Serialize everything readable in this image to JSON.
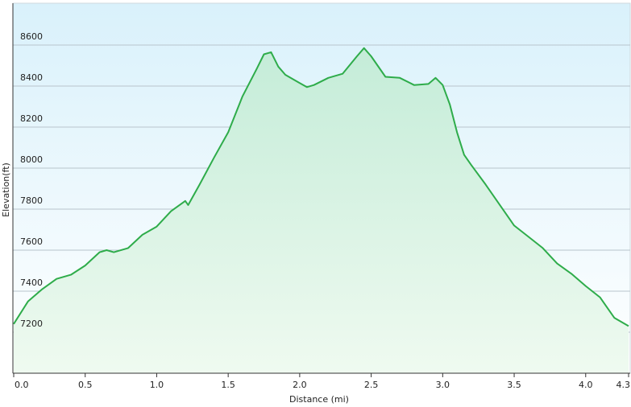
{
  "chart_data": {
    "type": "line",
    "x_label": "Distance  (mi)",
    "y_label": "Elevation(ft)",
    "x": [
      0,
      0.1,
      0.2,
      0.3,
      0.4,
      0.5,
      0.6,
      0.65,
      0.7,
      0.8,
      0.9,
      1.0,
      1.1,
      1.2,
      1.22,
      1.3,
      1.4,
      1.5,
      1.6,
      1.7,
      1.75,
      1.8,
      1.85,
      1.9,
      2.0,
      2.05,
      2.1,
      2.2,
      2.3,
      2.4,
      2.45,
      2.5,
      2.6,
      2.7,
      2.8,
      2.9,
      2.95,
      3.0,
      3.05,
      3.1,
      3.15,
      3.2,
      3.3,
      3.4,
      3.5,
      3.6,
      3.7,
      3.8,
      3.9,
      4.0,
      4.1,
      4.2,
      4.3
    ],
    "series": [
      {
        "color": "#2eac4a",
        "values": [
          7240,
          7350,
          7410,
          7460,
          7480,
          7525,
          7590,
          7600,
          7590,
          7610,
          7675,
          7715,
          7790,
          7840,
          7820,
          7920,
          8050,
          8175,
          8350,
          8485,
          8555,
          8565,
          8495,
          8455,
          8415,
          8395,
          8405,
          8440,
          8460,
          8545,
          8585,
          8545,
          8445,
          8440,
          8405,
          8410,
          8440,
          8405,
          8310,
          8175,
          8065,
          8015,
          7920,
          7820,
          7720,
          7665,
          7610,
          7535,
          7485,
          7425,
          7370,
          7270,
          7230
        ]
      }
    ],
    "xlim": [
      0,
      4.3
    ],
    "xticks": [
      {
        "value": 0,
        "label": "0.0"
      },
      0.5,
      {
        "value": 1,
        "label": "1.0"
      },
      1.5,
      {
        "value": 2,
        "label": "2.0"
      },
      2.5,
      {
        "value": 3,
        "label": "3.0"
      },
      3.5,
      {
        "value": 4,
        "label": "4.0"
      },
      4.3
    ],
    "ylim": [
      7000,
      8800
    ],
    "yticks": [
      7200,
      7400,
      7600,
      7800,
      8000,
      8200,
      8400,
      8600
    ],
    "grid": true
  }
}
